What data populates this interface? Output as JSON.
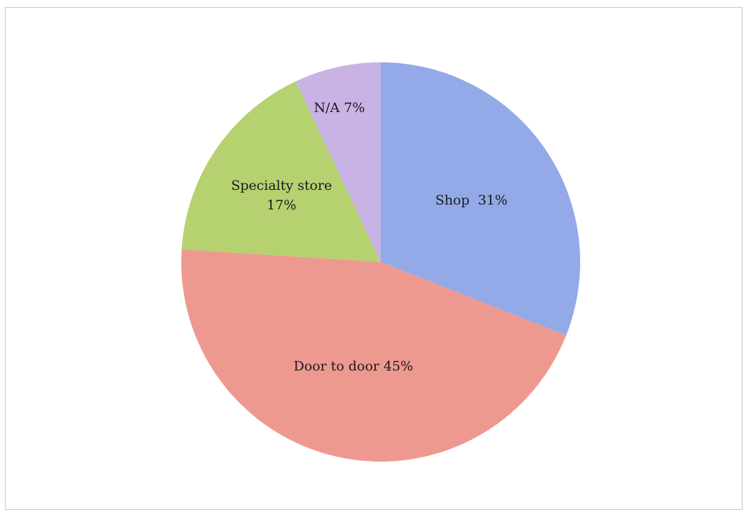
{
  "chart_data": {
    "type": "pie",
    "title": "",
    "slices": [
      {
        "label": "Shop",
        "value": 31,
        "color": "#93a9e8",
        "text_lines": [
          "Shop  31%"
        ]
      },
      {
        "label": "Door to door",
        "value": 45,
        "color": "#ee9990",
        "text_lines": [
          "Door to door 45%"
        ]
      },
      {
        "label": "Specialty store",
        "value": 17,
        "color": "#b5d170",
        "text_lines": [
          "Specialty store",
          "17%"
        ]
      },
      {
        "label": "N/A",
        "value": 7,
        "color": "#c9b3e4",
        "text_lines": [
          "N/A 7%"
        ]
      }
    ],
    "start_angle_deg": 0,
    "direction": "clockwise",
    "legend": "none",
    "labels_inside": true
  }
}
